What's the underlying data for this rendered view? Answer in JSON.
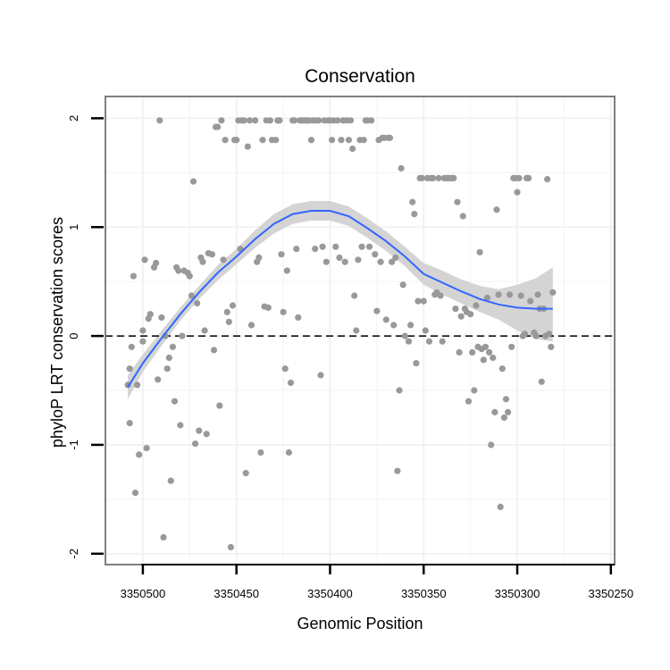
{
  "chart_data": {
    "type": "scatter",
    "title": "Conservation",
    "xlabel": "Genomic Position",
    "ylabel": "phyloP LRT conservation scores",
    "x_reversed": true,
    "xlim": [
      3350520,
      3350248
    ],
    "ylim": [
      -2.1,
      2.2
    ],
    "x_ticks": [
      3350500,
      3350450,
      3350400,
      3350350,
      3350300,
      3350250
    ],
    "x_tick_labels": [
      "3350500",
      "3350450",
      "3350400",
      "3350350",
      "3350300",
      "3350250"
    ],
    "y_ticks": [
      -2,
      -1,
      0,
      1,
      2
    ],
    "y_tick_labels": [
      "-2",
      "-1",
      "0",
      "1",
      "2"
    ],
    "grid": true,
    "reference_line": {
      "y": 0,
      "style": "dashed",
      "color": "#000000"
    },
    "colors": {
      "points": "#999999",
      "smooth_line": "#3366FF",
      "confidence_band": "#D4D4D4",
      "panel_border": "#7F7F7F",
      "grid": "#F2F2F2"
    },
    "series": [
      {
        "kind": "points",
        "points": [
          [
            3350508,
            -0.45
          ],
          [
            3350507,
            -0.3
          ],
          [
            3350507,
            -0.8
          ],
          [
            3350506,
            -0.1
          ],
          [
            3350505,
            0.55
          ],
          [
            3350504,
            -1.44
          ],
          [
            3350503,
            -0.45
          ],
          [
            3350502,
            -1.09
          ],
          [
            3350500,
            0.05
          ],
          [
            3350500,
            -0.05
          ],
          [
            3350499,
            0.7
          ],
          [
            3350498,
            -1.03
          ],
          [
            3350497,
            0.16
          ],
          [
            3350496,
            0.2
          ],
          [
            3350494,
            0.63
          ],
          [
            3350493,
            0.67
          ],
          [
            3350492,
            -0.4
          ],
          [
            3350491,
            1.98
          ],
          [
            3350490,
            0.17
          ],
          [
            3350489,
            -1.85
          ],
          [
            3350488,
            0.0
          ],
          [
            3350487,
            -0.3
          ],
          [
            3350486,
            -0.2
          ],
          [
            3350485,
            -1.33
          ],
          [
            3350484,
            -0.1
          ],
          [
            3350483,
            -0.6
          ],
          [
            3350482,
            0.63
          ],
          [
            3350481,
            0.6
          ],
          [
            3350480,
            -0.82
          ],
          [
            3350479,
            0.0
          ],
          [
            3350478,
            0.6
          ],
          [
            3350476,
            0.58
          ],
          [
            3350475,
            0.55
          ],
          [
            3350474,
            0.37
          ],
          [
            3350473,
            1.42
          ],
          [
            3350472,
            -0.99
          ],
          [
            3350471,
            0.3
          ],
          [
            3350470,
            -0.87
          ],
          [
            3350469,
            0.72
          ],
          [
            3350468,
            0.68
          ],
          [
            3350467,
            0.05
          ],
          [
            3350466,
            -0.9
          ],
          [
            3350465,
            0.76
          ],
          [
            3350463,
            0.75
          ],
          [
            3350462,
            -0.13
          ],
          [
            3350461,
            1.92
          ],
          [
            3350460,
            1.92
          ],
          [
            3350459,
            -0.64
          ],
          [
            3350458,
            1.98
          ],
          [
            3350457,
            0.7
          ],
          [
            3350456,
            1.8
          ],
          [
            3350455,
            0.22
          ],
          [
            3350454,
            0.13
          ],
          [
            3350453,
            -1.94
          ],
          [
            3350452,
            0.28
          ],
          [
            3350451,
            1.8
          ],
          [
            3350450,
            1.8
          ],
          [
            3350449,
            1.98
          ],
          [
            3350448,
            0.8
          ],
          [
            3350447,
            1.98
          ],
          [
            3350446,
            1.98
          ],
          [
            3350445,
            -1.26
          ],
          [
            3350444,
            1.74
          ],
          [
            3350443,
            1.98
          ],
          [
            3350442,
            0.1
          ],
          [
            3350440,
            1.98
          ],
          [
            3350439,
            0.68
          ],
          [
            3350438,
            0.72
          ],
          [
            3350437,
            -1.07
          ],
          [
            3350436,
            1.8
          ],
          [
            3350435,
            0.27
          ],
          [
            3350434,
            1.98
          ],
          [
            3350433,
            0.26
          ],
          [
            3350432,
            1.98
          ],
          [
            3350431,
            1.8
          ],
          [
            3350429,
            1.8
          ],
          [
            3350428,
            1.98
          ],
          [
            3350427,
            1.98
          ],
          [
            3350426,
            0.75
          ],
          [
            3350425,
            0.22
          ],
          [
            3350424,
            -0.3
          ],
          [
            3350423,
            0.6
          ],
          [
            3350422,
            -1.07
          ],
          [
            3350421,
            -0.43
          ],
          [
            3350420,
            1.98
          ],
          [
            3350419,
            1.98
          ],
          [
            3350418,
            0.8
          ],
          [
            3350417,
            0.17
          ],
          [
            3350416,
            1.98
          ],
          [
            3350415,
            1.98
          ],
          [
            3350414,
            1.98
          ],
          [
            3350413,
            1.98
          ],
          [
            3350412,
            1.98
          ],
          [
            3350411,
            1.98
          ],
          [
            3350410,
            1.8
          ],
          [
            3350409,
            1.98
          ],
          [
            3350408,
            0.8
          ],
          [
            3350407,
            1.98
          ],
          [
            3350406,
            1.98
          ],
          [
            3350405,
            -0.36
          ],
          [
            3350404,
            0.82
          ],
          [
            3350403,
            1.98
          ],
          [
            3350402,
            0.68
          ],
          [
            3350401,
            1.98
          ],
          [
            3350400,
            1.98
          ],
          [
            3350399,
            1.8
          ],
          [
            3350398,
            1.98
          ],
          [
            3350397,
            0.82
          ],
          [
            3350396,
            1.98
          ],
          [
            3350395,
            0.72
          ],
          [
            3350394,
            1.8
          ],
          [
            3350393,
            1.98
          ],
          [
            3350392,
            0.68
          ],
          [
            3350391,
            1.98
          ],
          [
            3350390,
            1.8
          ],
          [
            3350389,
            1.98
          ],
          [
            3350388,
            1.72
          ],
          [
            3350387,
            0.37
          ],
          [
            3350386,
            0.05
          ],
          [
            3350385,
            0.7
          ],
          [
            3350384,
            1.8
          ],
          [
            3350383,
            0.82
          ],
          [
            3350382,
            1.8
          ],
          [
            3350381,
            1.98
          ],
          [
            3350380,
            1.98
          ],
          [
            3350379,
            0.82
          ],
          [
            3350378,
            1.98
          ],
          [
            3350376,
            0.75
          ],
          [
            3350375,
            0.23
          ],
          [
            3350374,
            1.8
          ],
          [
            3350373,
            0.68
          ],
          [
            3350372,
            1.82
          ],
          [
            3350371,
            1.82
          ],
          [
            3350370,
            0.15
          ],
          [
            3350369,
            1.82
          ],
          [
            3350368,
            1.82
          ],
          [
            3350367,
            0.68
          ],
          [
            3350366,
            0.1
          ],
          [
            3350365,
            0.72
          ],
          [
            3350364,
            -1.24
          ],
          [
            3350363,
            -0.5
          ],
          [
            3350362,
            1.54
          ],
          [
            3350361,
            0.47
          ],
          [
            3350360,
            0.0
          ],
          [
            3350358,
            -0.05
          ],
          [
            3350357,
            0.1
          ],
          [
            3350356,
            1.23
          ],
          [
            3350355,
            1.12
          ],
          [
            3350354,
            -0.25
          ],
          [
            3350353,
            0.32
          ],
          [
            3350352,
            1.45
          ],
          [
            3350351,
            1.45
          ],
          [
            3350350,
            0.32
          ],
          [
            3350349,
            0.05
          ],
          [
            3350348,
            1.45
          ],
          [
            3350347,
            -0.05
          ],
          [
            3350346,
            1.45
          ],
          [
            3350345,
            1.45
          ],
          [
            3350344,
            0.38
          ],
          [
            3350343,
            0.4
          ],
          [
            3350342,
            1.45
          ],
          [
            3350341,
            0.37
          ],
          [
            3350340,
            -0.05
          ],
          [
            3350339,
            1.45
          ],
          [
            3350338,
            1.45
          ],
          [
            3350337,
            1.45
          ],
          [
            3350336,
            1.45
          ],
          [
            3350335,
            1.45
          ],
          [
            3350334,
            1.45
          ],
          [
            3350333,
            0.25
          ],
          [
            3350332,
            1.23
          ],
          [
            3350331,
            -0.15
          ],
          [
            3350330,
            0.18
          ],
          [
            3350329,
            1.1
          ],
          [
            3350328,
            0.25
          ],
          [
            3350327,
            0.22
          ],
          [
            3350326,
            -0.6
          ],
          [
            3350325,
            0.2
          ],
          [
            3350324,
            -0.15
          ],
          [
            3350323,
            -0.5
          ],
          [
            3350322,
            0.28
          ],
          [
            3350321,
            -0.1
          ],
          [
            3350320,
            0.77
          ],
          [
            3350319,
            -0.12
          ],
          [
            3350318,
            -0.22
          ],
          [
            3350317,
            -0.1
          ],
          [
            3350316,
            0.35
          ],
          [
            3350315,
            -0.15
          ],
          [
            3350314,
            -1.0
          ],
          [
            3350313,
            -0.2
          ],
          [
            3350312,
            -0.7
          ],
          [
            3350311,
            1.16
          ],
          [
            3350310,
            0.38
          ],
          [
            3350309,
            -1.57
          ],
          [
            3350308,
            -0.3
          ],
          [
            3350307,
            -0.75
          ],
          [
            3350306,
            -0.58
          ],
          [
            3350305,
            -0.7
          ],
          [
            3350304,
            0.38
          ],
          [
            3350303,
            -0.1
          ],
          [
            3350302,
            1.45
          ],
          [
            3350301,
            1.45
          ],
          [
            3350300,
            1.32
          ],
          [
            3350299,
            1.45
          ],
          [
            3350298,
            0.37
          ],
          [
            3350297,
            0.0
          ],
          [
            3350296,
            0.02
          ],
          [
            3350295,
            1.45
          ],
          [
            3350294,
            1.45
          ],
          [
            3350293,
            0.32
          ],
          [
            3350291,
            0.03
          ],
          [
            3350290,
            0.0
          ],
          [
            3350289,
            0.38
          ],
          [
            3350288,
            0.25
          ],
          [
            3350287,
            -0.42
          ],
          [
            3350286,
            0.25
          ],
          [
            3350285,
            0.0
          ],
          [
            3350284,
            1.44
          ],
          [
            3350283,
            0.02
          ],
          [
            3350282,
            -0.1
          ],
          [
            3350281,
            0.4
          ]
        ]
      },
      {
        "kind": "smooth",
        "x": [
          3350508,
          3350500,
          3350490,
          3350480,
          3350470,
          3350460,
          3350450,
          3350440,
          3350430,
          3350420,
          3350410,
          3350400,
          3350390,
          3350380,
          3350370,
          3350360,
          3350350,
          3350340,
          3350330,
          3350320,
          3350310,
          3350300,
          3350290,
          3350281
        ],
        "y": [
          -0.47,
          -0.25,
          -0.02,
          0.2,
          0.4,
          0.58,
          0.73,
          0.89,
          1.03,
          1.12,
          1.15,
          1.15,
          1.1,
          0.99,
          0.87,
          0.73,
          0.57,
          0.49,
          0.41,
          0.34,
          0.29,
          0.26,
          0.25,
          0.25
        ],
        "lower": [
          -0.58,
          -0.33,
          -0.09,
          0.14,
          0.34,
          0.51,
          0.66,
          0.81,
          0.94,
          1.03,
          1.06,
          1.06,
          1.01,
          0.9,
          0.78,
          0.64,
          0.47,
          0.38,
          0.3,
          0.22,
          0.15,
          0.05,
          -0.03,
          -0.05
        ],
        "upper": [
          -0.36,
          -0.17,
          0.05,
          0.26,
          0.46,
          0.65,
          0.8,
          0.97,
          1.12,
          1.21,
          1.24,
          1.24,
          1.19,
          1.08,
          0.96,
          0.82,
          0.67,
          0.6,
          0.52,
          0.46,
          0.43,
          0.47,
          0.53,
          0.63
        ]
      }
    ]
  }
}
